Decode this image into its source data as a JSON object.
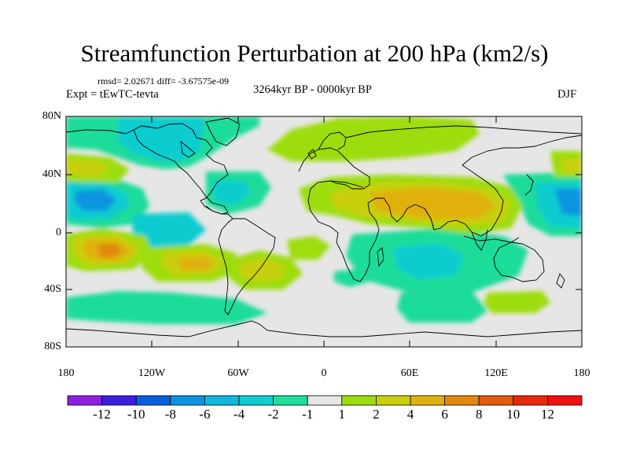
{
  "title": "Streamfunction Perturbation at 200 hPa (km2/s)",
  "stats": "rmsd= 2.02671 diff= -3.67575e-09",
  "experiment": "Expt = tEwTC-tevta",
  "period": "3264kyr BP - 0000kyr BP",
  "season": "DJF",
  "lat_labels": [
    "80N",
    "40N",
    "0",
    "40S",
    "80S"
  ],
  "lon_labels": [
    "180",
    "120W",
    "60W",
    "0",
    "60E",
    "120E",
    "180"
  ],
  "colorbar": {
    "labels": [
      "-12",
      "-10",
      "-8",
      "-6",
      "-4",
      "-2",
      "-1",
      "1",
      "2",
      "4",
      "6",
      "8",
      "10",
      "12"
    ],
    "colors": [
      "#8c1fe0",
      "#3b1fe0",
      "#0a5ee0",
      "#0a94e0",
      "#11b8dd",
      "#10ccd0",
      "#1fdc9a",
      "#e6e6e6",
      "#9ddd10",
      "#c8cf0c",
      "#e0b010",
      "#e08810",
      "#e05a10",
      "#e6280e",
      "#f01010"
    ]
  },
  "map_colors": {
    "neutral": "#e6e6e6",
    "land_outline": "#000000"
  }
}
